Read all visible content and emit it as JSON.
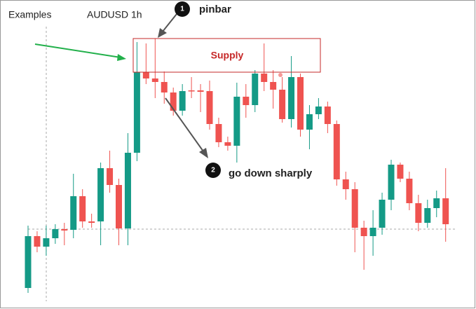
{
  "chart_data": {
    "type": "candlestick",
    "title": "AUDUSD 1h",
    "label": "Examples",
    "annotations": {
      "marker1": "1",
      "pinbar": "pinbar",
      "zone": "Supply",
      "marker2": "2",
      "move": "go down sharply"
    },
    "ylim": [
      0,
      441
    ],
    "up_color": "#149a86",
    "down_color": "#ef5350",
    "open": [
      30,
      104,
      89,
      101,
      114,
      113,
      161,
      125,
      125,
      201,
      177,
      115,
      223,
      338,
      329,
      324,
      309,
      283,
      312,
      312,
      311,
      264,
      238,
      233,
      303,
      291,
      336,
      324,
      313,
      271,
      331,
      256,
      278,
      289,
      264,
      185,
      171,
      116,
      104,
      116,
      156,
      206,
      186,
      151,
      123,
      144,
      158
    ],
    "high": [
      119,
      111,
      119,
      121,
      123,
      193,
      171,
      136,
      209,
      226,
      186,
      251,
      381,
      379,
      386,
      339,
      316,
      321,
      331,
      321,
      326,
      273,
      246,
      323,
      321,
      341,
      379,
      341,
      331,
      361,
      336,
      291,
      301,
      296,
      269,
      196,
      181,
      126,
      141,
      166,
      213,
      209,
      196,
      163,
      156,
      169,
      201
    ],
    "low": [
      23,
      81,
      76,
      93,
      91,
      101,
      116,
      116,
      91,
      166,
      91,
      91,
      211,
      321,
      301,
      293,
      276,
      276,
      301,
      281,
      256,
      231,
      226,
      209,
      273,
      281,
      311,
      286,
      266,
      259,
      246,
      228,
      271,
      251,
      176,
      156,
      81,
      56,
      76,
      106,
      141,
      181,
      141,
      111,
      116,
      131,
      96
    ],
    "close": [
      104,
      89,
      101,
      114,
      112,
      161,
      125,
      123,
      201,
      177,
      115,
      223,
      338,
      329,
      324,
      309,
      283,
      311,
      311,
      310,
      264,
      238,
      233,
      303,
      291,
      336,
      324,
      313,
      271,
      331,
      256,
      278,
      289,
      264,
      185,
      171,
      116,
      104,
      116,
      156,
      206,
      186,
      151,
      123,
      144,
      158,
      121
    ]
  }
}
